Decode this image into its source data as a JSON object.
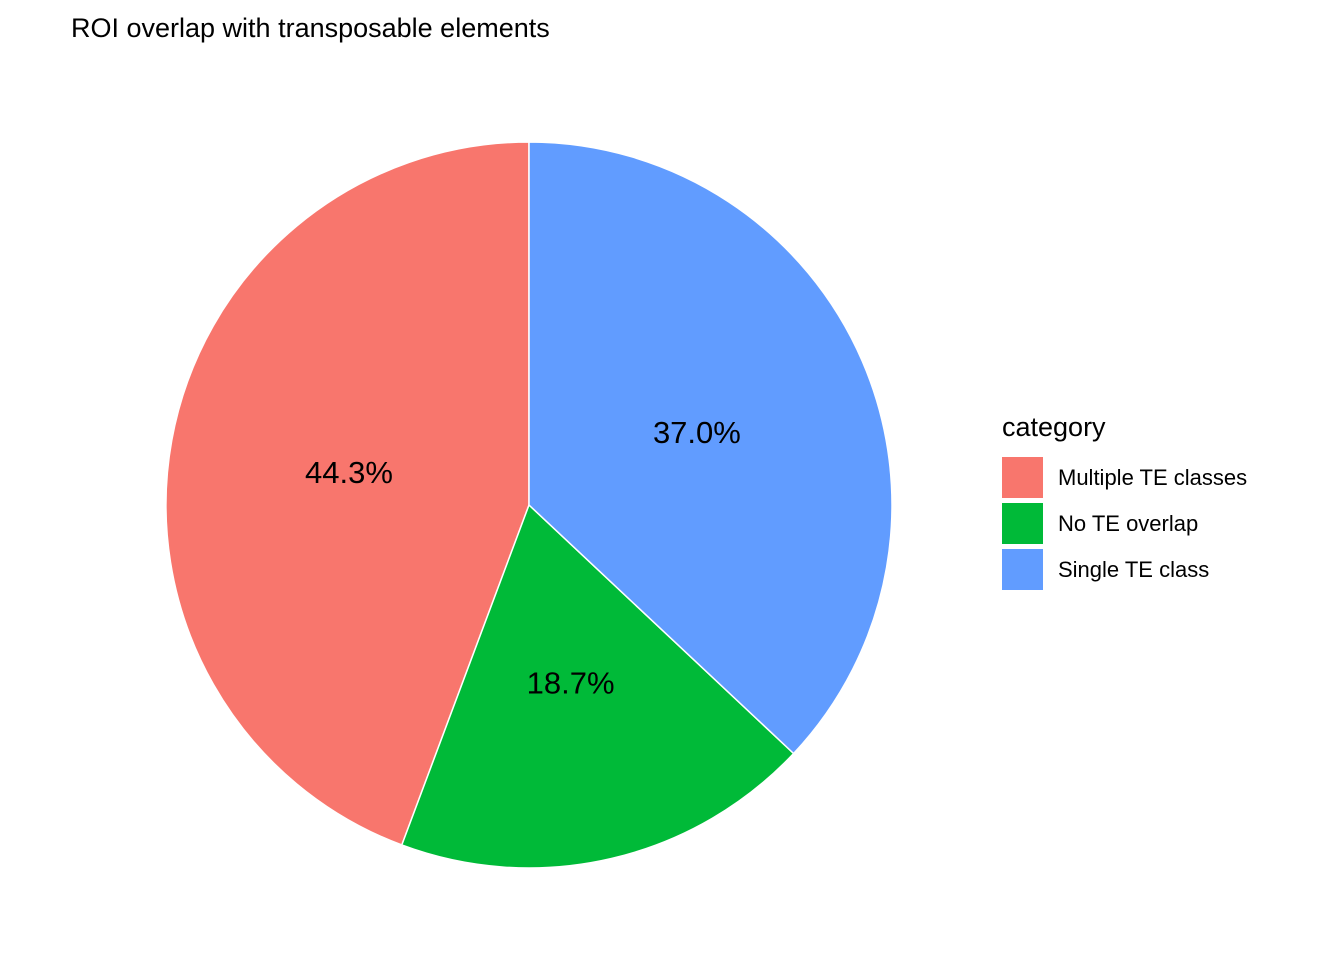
{
  "chart_data": {
    "type": "pie",
    "title": "ROI overlap with transposable elements",
    "legend_title": "category",
    "legend_position": "right",
    "start_angle": "12-o-clock",
    "winding": "counterclockwise",
    "slices": [
      {
        "label": "Multiple TE classes",
        "value": 44.3,
        "display": "44.3%",
        "color": "#F8766D"
      },
      {
        "label": "No TE overlap",
        "value": 18.7,
        "display": "18.7%",
        "color": "#00BA38"
      },
      {
        "label": "Single TE class",
        "value": 37.0,
        "display": "37.0%",
        "color": "#619CFF"
      }
    ],
    "slice_border_color": "#FFFFFF",
    "label_color": "#000000",
    "background": "#FFFFFF"
  }
}
